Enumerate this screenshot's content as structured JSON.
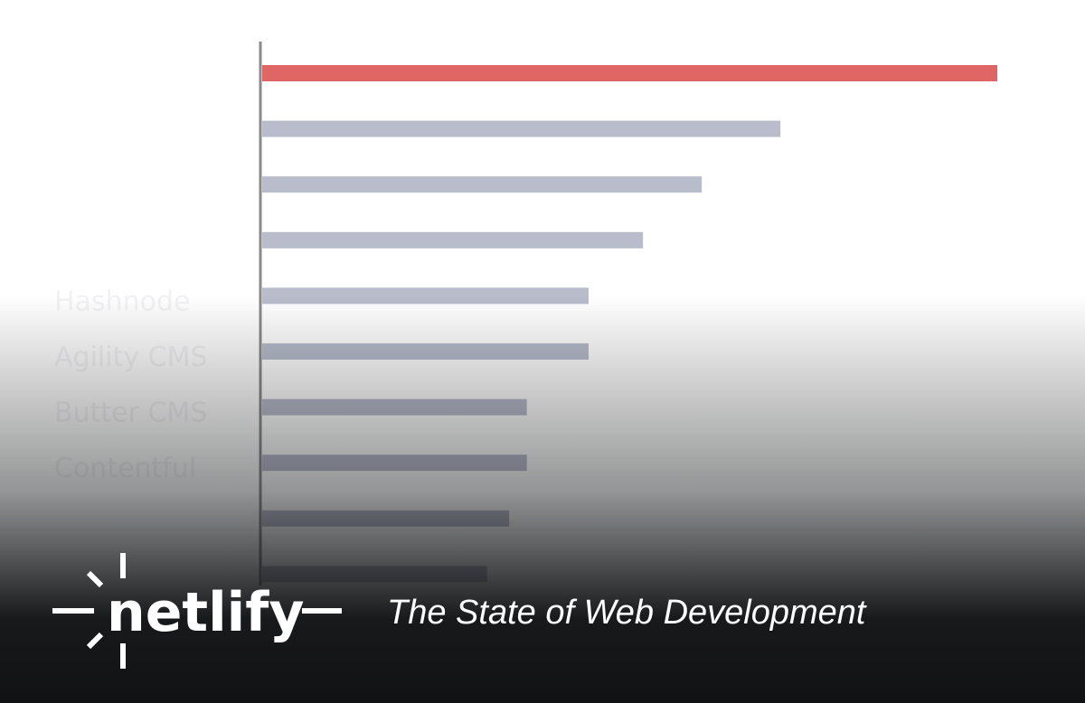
{
  "chart_data": {
    "type": "barh",
    "categories": [
      null,
      null,
      null,
      null,
      "Hashnode",
      "Agility CMS",
      "Butter CMS",
      "Contentful",
      null,
      null
    ],
    "values": [
      100,
      70.5,
      59.8,
      51.8,
      44.4,
      44.4,
      36,
      36,
      33.6,
      30.6
    ],
    "colors": [
      "#e06666",
      "#b8bccb",
      "#b8bccb",
      "#b8bccb",
      "#b8bccb",
      "#b8bccb",
      "#b8bccb",
      "#b8bccb",
      "#b8bccb",
      "#b8bccb"
    ],
    "xlim": [
      0,
      100
    ]
  },
  "branding": {
    "logo": "netlify",
    "tagline": "The State of Web Development"
  }
}
